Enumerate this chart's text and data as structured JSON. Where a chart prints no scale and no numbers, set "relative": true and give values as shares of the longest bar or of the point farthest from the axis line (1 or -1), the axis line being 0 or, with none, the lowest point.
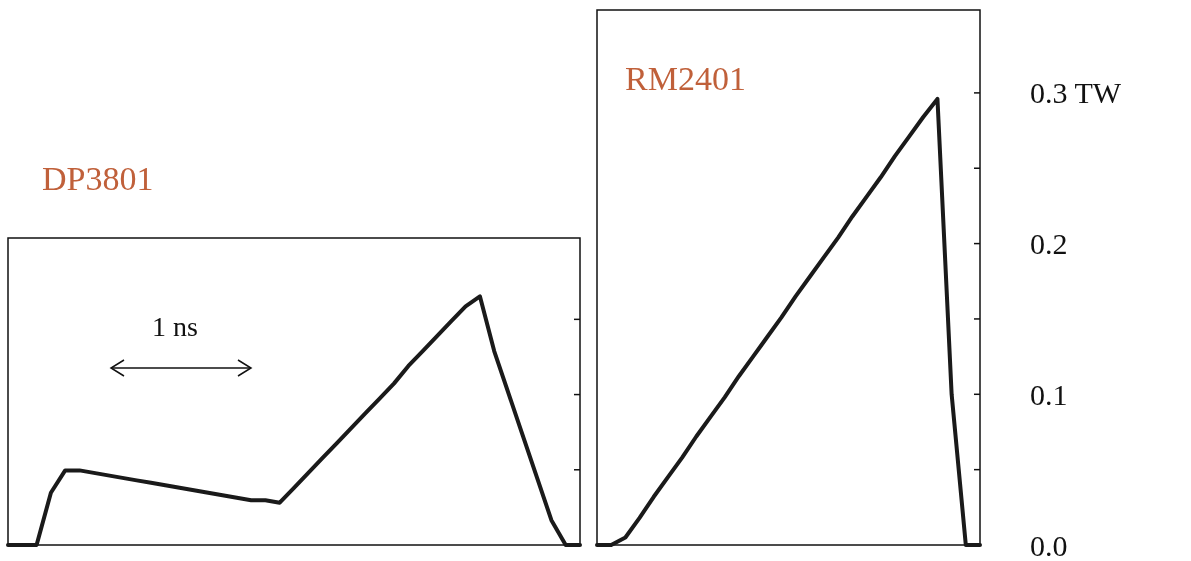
{
  "chart_data": [
    {
      "type": "line",
      "title": "DP3801",
      "relative": true,
      "categories": [
        null,
        null,
        null,
        null,
        null,
        null,
        null,
        null,
        null,
        null,
        null,
        null,
        null,
        null,
        null,
        null,
        null,
        null,
        null,
        null,
        null,
        null,
        null,
        null,
        null,
        null,
        null,
        null,
        null,
        null,
        null,
        null,
        null,
        null,
        null,
        null,
        null,
        null,
        null,
        null,
        null
      ],
      "values": [
        0,
        0,
        0,
        0.21,
        0.3,
        0.3,
        0.29,
        0.28,
        0.27,
        0.26,
        0.25,
        0.24,
        0.23,
        0.22,
        0.21,
        0.2,
        0.19,
        0.18,
        0.18,
        0.17,
        0.23,
        0.29,
        0.35,
        0.41,
        0.47,
        0.53,
        0.59,
        0.65,
        0.72,
        0.78,
        0.84,
        0.9,
        0.96,
        1,
        0.78,
        0.61,
        0.44,
        0.27,
        0.1,
        0,
        0
      ],
      "color": "#1a1a1a",
      "annotations": [
        "1 ns"
      ]
    },
    {
      "type": "line",
      "title": "RM2401",
      "categories": [
        null,
        null,
        null,
        null,
        null,
        null,
        null,
        null,
        null,
        null,
        null,
        null,
        null,
        null,
        null,
        null,
        null,
        null,
        null,
        null,
        null,
        null,
        null,
        null,
        null,
        null,
        null,
        null
      ],
      "values": [
        0,
        0,
        0.005,
        0.018,
        0.032,
        0.045,
        0.058,
        0.072,
        0.085,
        0.098,
        0.112,
        0.125,
        0.138,
        0.151,
        0.165,
        0.178,
        0.191,
        0.204,
        0.218,
        0.231,
        0.244,
        0.258,
        0.271,
        0.284,
        0.296,
        0.1,
        0,
        0
      ],
      "color": "#1a1a1a",
      "ylim": [
        0,
        0.355
      ],
      "yticks": [
        {
          "value": 0,
          "label": "0.0"
        },
        {
          "value": 0.05,
          "label": null
        },
        {
          "value": 0.1,
          "label": "0.1"
        },
        {
          "value": 0.15,
          "label": null
        },
        {
          "value": 0.2,
          "label": "0.2"
        },
        {
          "value": 0.25,
          "label": null
        },
        {
          "value": 0.3,
          "label": "0.3 TW"
        }
      ]
    }
  ]
}
